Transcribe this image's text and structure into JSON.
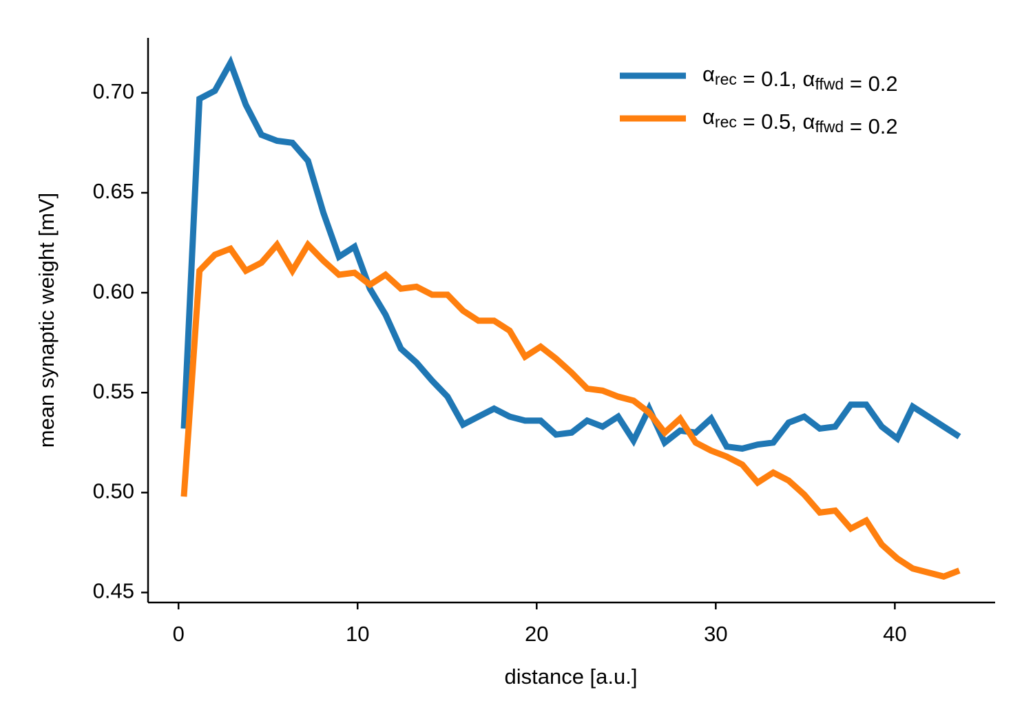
{
  "chart_data": {
    "type": "line",
    "xlabel": "distance [a.u.]",
    "ylabel": "mean synaptic weight [mV]",
    "x": [
      0.3,
      1.17,
      2.03,
      2.9,
      3.76,
      4.63,
      5.5,
      6.36,
      7.23,
      8.09,
      8.96,
      9.83,
      10.69,
      11.56,
      12.42,
      13.29,
      14.16,
      15.02,
      15.89,
      16.75,
      17.62,
      18.49,
      19.35,
      20.22,
      21.08,
      21.95,
      22.82,
      23.68,
      24.55,
      25.41,
      26.28,
      27.15,
      28.01,
      28.88,
      29.74,
      30.61,
      31.48,
      32.34,
      33.21,
      34.07,
      34.94,
      35.81,
      36.67,
      37.54,
      38.4,
      39.27,
      40.14,
      41.0,
      41.87,
      42.73,
      43.6
    ],
    "series": [
      {
        "name": "αrec = 0.1, αffwd = 0.2",
        "color": "#1f77b4",
        "values": [
          0.532,
          0.697,
          0.701,
          0.715,
          0.694,
          0.679,
          0.676,
          0.675,
          0.666,
          0.64,
          0.618,
          0.623,
          0.602,
          0.589,
          0.572,
          0.565,
          0.556,
          0.548,
          0.534,
          0.538,
          0.542,
          0.538,
          0.536,
          0.536,
          0.529,
          0.53,
          0.536,
          0.533,
          0.538,
          0.526,
          0.542,
          0.525,
          0.531,
          0.53,
          0.537,
          0.523,
          0.522,
          0.524,
          0.525,
          0.535,
          0.538,
          0.532,
          0.533,
          0.544,
          0.544,
          0.533,
          0.527,
          0.543,
          0.538,
          0.533,
          0.528
        ]
      },
      {
        "name": "αrec = 0.5, αffwd = 0.2",
        "color": "#ff7f0e",
        "values": [
          0.498,
          0.611,
          0.619,
          0.622,
          0.611,
          0.615,
          0.624,
          0.611,
          0.624,
          0.616,
          0.609,
          0.61,
          0.604,
          0.609,
          0.602,
          0.603,
          0.599,
          0.599,
          0.591,
          0.586,
          0.586,
          0.581,
          0.568,
          0.573,
          0.567,
          0.56,
          0.552,
          0.551,
          0.548,
          0.546,
          0.54,
          0.53,
          0.537,
          0.525,
          0.521,
          0.518,
          0.514,
          0.505,
          0.51,
          0.506,
          0.499,
          0.49,
          0.491,
          0.482,
          0.486,
          0.474,
          0.467,
          0.462,
          0.46,
          0.458,
          0.461
        ]
      }
    ],
    "xlim": [
      -1.7,
      45.6
    ],
    "ylim": [
      0.445,
      0.7275
    ],
    "xticks": [
      0,
      10,
      20,
      30,
      40
    ],
    "yticks": [
      0.45,
      {
        "value": 0.5,
        "label": "0.50"
      },
      0.55,
      {
        "value": 0.6,
        "label": "0.60"
      },
      0.65,
      {
        "value": 0.7,
        "label": "0.70"
      }
    ],
    "legend": "upper right"
  }
}
